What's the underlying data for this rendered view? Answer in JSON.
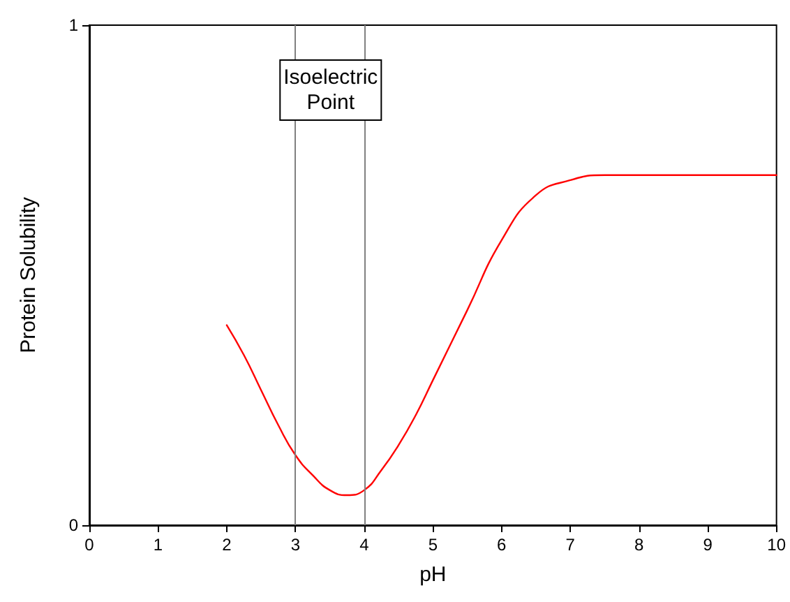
{
  "chart_data": {
    "type": "line",
    "xlabel": "pH",
    "ylabel": "Protein Solubility",
    "x": [
      2,
      2.25,
      2.5,
      2.75,
      3,
      3.25,
      3.5,
      3.75,
      4,
      4.25,
      4.5,
      4.75,
      5,
      5.5,
      6,
      6.5,
      7,
      7.5,
      8,
      9,
      10
    ],
    "series": [
      {
        "color": "#ff0000",
        "values": [
          0.4,
          0.34,
          0.27,
          0.2,
          0.14,
          0.1,
          0.07,
          0.06,
          0.07,
          0.11,
          0.16,
          0.22,
          0.29,
          0.43,
          0.57,
          0.66,
          0.69,
          0.7,
          0.7,
          0.7,
          0.7
        ]
      }
    ],
    "xlim": [
      0,
      10
    ],
    "xticks": [
      0,
      1,
      2,
      3,
      4,
      5,
      6,
      7,
      8,
      9,
      10
    ],
    "ylim": [
      0,
      1
    ],
    "yticks": [
      0,
      1
    ],
    "ref_lines": [
      {
        "axis": "x",
        "value": 3,
        "color": "#808080"
      },
      {
        "axis": "x",
        "value": 4,
        "color": "#808080"
      }
    ],
    "annotations": [
      "Isoelectric\nPoint"
    ],
    "grid": false,
    "marker": "none",
    "line_style": "solid"
  }
}
